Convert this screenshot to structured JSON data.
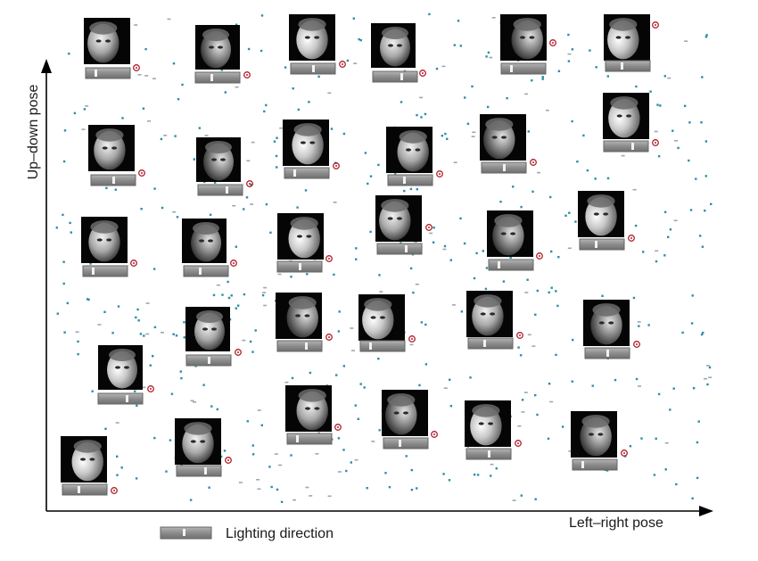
{
  "figure": {
    "x_axis_label": "Left–right pose",
    "y_axis_label": "Up–down pose",
    "legend_label": "Lighting direction"
  }
}
